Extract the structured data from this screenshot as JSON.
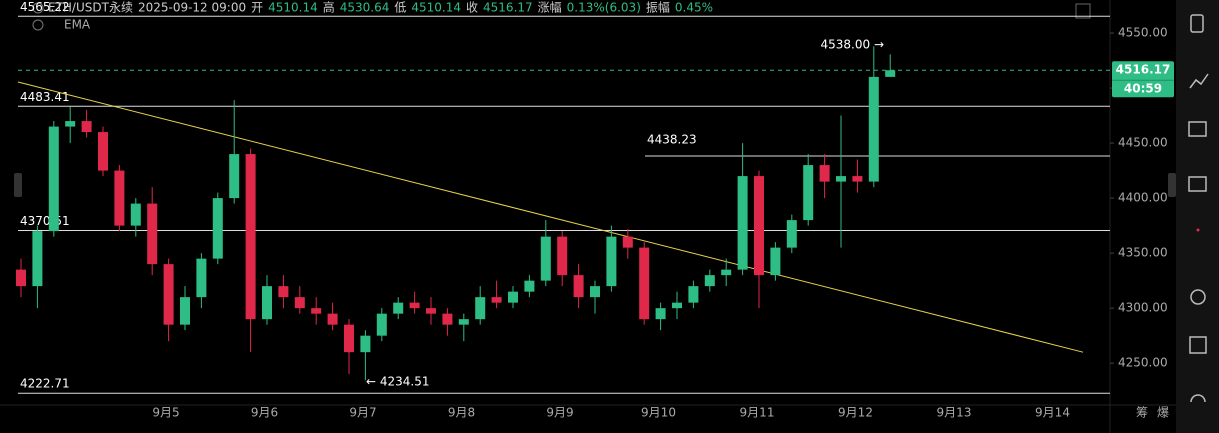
{
  "chart_data": {
    "type": "candlestick",
    "symbol": "ETH/USDT永续",
    "datetime": "2025-09-12 09:00",
    "header": [
      {
        "label": "开",
        "value": 4510.14
      },
      {
        "label": "高",
        "value": 4530.64
      },
      {
        "label": "低",
        "value": 4510.14
      },
      {
        "label": "收",
        "value": 4516.17
      },
      {
        "label": "涨幅",
        "value": "0.13%(6.03)"
      },
      {
        "label": "振幅",
        "value": "0.45%"
      }
    ],
    "indicator": "EMA",
    "ylim": [
      4212,
      4580
    ],
    "yticks": [
      {
        "value": 4550,
        "label": "4550.00"
      },
      {
        "value": 4500,
        "label": "4500.00"
      },
      {
        "value": 4450,
        "label": "4450.00"
      },
      {
        "value": 4400,
        "label": "4400.00"
      },
      {
        "value": 4350,
        "label": "4350.00"
      },
      {
        "value": 4300,
        "label": "4300.00"
      },
      {
        "value": 4250,
        "label": "4250.00"
      }
    ],
    "xlabels": [
      "9月5",
      "9月6",
      "9月7",
      "9月8",
      "9月9",
      "9月10",
      "9月11",
      "9月12",
      "9月13",
      "9月14"
    ],
    "up_color": "#2ebd85",
    "down_color": "#e0294a",
    "candles": {
      "open": [
        4335,
        4320,
        4370,
        4465,
        4470,
        4460,
        4425,
        4375,
        4395,
        4340,
        4285,
        4310,
        4345,
        4400,
        4440,
        4290,
        4320,
        4310,
        4300,
        4295,
        4285,
        4260,
        4275,
        4295,
        4305,
        4300,
        4295,
        4285,
        4290,
        4310,
        4305,
        4315,
        4325,
        4365,
        4330,
        4310,
        4320,
        4365,
        4355,
        4290,
        4300,
        4305,
        4320,
        4330,
        4335,
        4420,
        4330,
        4355,
        4380,
        4430,
        4415,
        4420,
        4415,
        4510.14
      ],
      "high": [
        4345,
        4375,
        4470,
        4483,
        4480,
        4465,
        4430,
        4400,
        4410,
        4345,
        4320,
        4350,
        4405,
        4489,
        4445,
        4330,
        4330,
        4320,
        4310,
        4305,
        4290,
        4280,
        4300,
        4310,
        4315,
        4310,
        4300,
        4295,
        4320,
        4325,
        4320,
        4330,
        4380,
        4370,
        4340,
        4325,
        4375,
        4372,
        4360,
        4305,
        4315,
        4325,
        4335,
        4345,
        4450,
        4425,
        4360,
        4385,
        4440,
        4440,
        4475,
        4435,
        4538,
        4530.64
      ],
      "low": [
        4310,
        4300,
        4365,
        4450,
        4455,
        4420,
        4370,
        4365,
        4330,
        4270,
        4280,
        4300,
        4340,
        4395,
        4260,
        4285,
        4300,
        4295,
        4285,
        4280,
        4240,
        4234.51,
        4270,
        4290,
        4295,
        4285,
        4275,
        4270,
        4285,
        4300,
        4300,
        4310,
        4320,
        4320,
        4300,
        4295,
        4315,
        4345,
        4285,
        4280,
        4290,
        4300,
        4315,
        4320,
        4330,
        4300,
        4325,
        4350,
        4375,
        4400,
        4355,
        4405,
        4410,
        4510.14
      ],
      "close": [
        4320,
        4370,
        4465,
        4470,
        4460,
        4425,
        4375,
        4395,
        4340,
        4285,
        4310,
        4345,
        4400,
        4440,
        4290,
        4320,
        4310,
        4300,
        4295,
        4285,
        4260,
        4275,
        4295,
        4305,
        4300,
        4295,
        4285,
        4290,
        4310,
        4305,
        4315,
        4325,
        4365,
        4330,
        4310,
        4320,
        4365,
        4355,
        4290,
        4300,
        4305,
        4320,
        4330,
        4335,
        4420,
        4330,
        4355,
        4380,
        4430,
        4415,
        4420,
        4415,
        4510.14,
        4516.17
      ]
    },
    "levels": [
      4565.22,
      4483.41,
      4370.51,
      4222.71
    ],
    "partial_level": 4438.23,
    "trendline": [
      4505.5,
      4260
    ],
    "high_label": "4538.00 →",
    "low_label": "← 4234.51",
    "last_price": 4516.17,
    "countdown": "40:59",
    "footer": [
      "筹",
      "爆"
    ]
  }
}
